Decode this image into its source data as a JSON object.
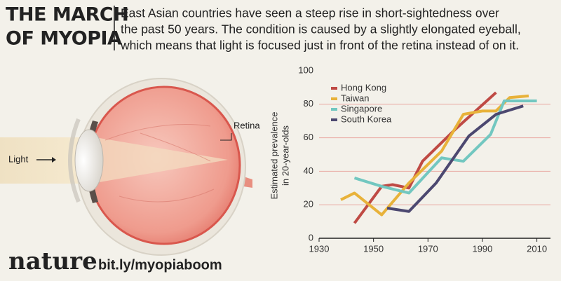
{
  "title_lines": [
    "THE MARCH",
    "OF MYOPIA"
  ],
  "description": [
    "East Asian countries have seen a steep rise in short-sightedness over",
    "the past 50 years. The condition is caused by a slightly elongated eyeball,",
    "which means that light is focused just in front of the retina instead of on it."
  ],
  "diagram": {
    "light_label": "Light",
    "retina_label": "Retina"
  },
  "footer": {
    "brand": "nature",
    "link": "bit.ly/myopiaboom"
  },
  "chart_data": {
    "type": "line",
    "ylabel": [
      "Estimated prevalence",
      "in 20-year-olds"
    ],
    "xlim": [
      1930,
      2015
    ],
    "xticks": [
      1930,
      1950,
      1970,
      1990,
      2010
    ],
    "ylim": [
      0,
      100
    ],
    "yticks": [
      0,
      20,
      40,
      60,
      80,
      100
    ],
    "grid": true,
    "legend": "top-left",
    "series": [
      {
        "name": "Hong Kong",
        "color": "#bf4a44",
        "x": [
          1943,
          1953,
          1957,
          1963,
          1968,
          1980,
          1995
        ],
        "values": [
          9,
          31,
          32,
          30,
          46,
          65,
          87
        ]
      },
      {
        "name": "Taiwan",
        "color": "#e8b23a",
        "x": [
          1938,
          1943,
          1953,
          1963,
          1975,
          1983,
          1990,
          1995,
          2000,
          2007
        ],
        "values": [
          23,
          27,
          14,
          33,
          52,
          74,
          76,
          76,
          84,
          85
        ]
      },
      {
        "name": "Singapore",
        "color": "#72c7c0",
        "x": [
          1943,
          1953,
          1963,
          1975,
          1983,
          1993,
          1998,
          2010
        ],
        "values": [
          36,
          31,
          27,
          48,
          46,
          62,
          82,
          82
        ]
      },
      {
        "name": "South Korea",
        "color": "#4c4870",
        "x": [
          1955,
          1963,
          1973,
          1985,
          1995,
          2005
        ],
        "values": [
          18,
          16,
          33,
          61,
          74,
          79
        ]
      }
    ]
  }
}
